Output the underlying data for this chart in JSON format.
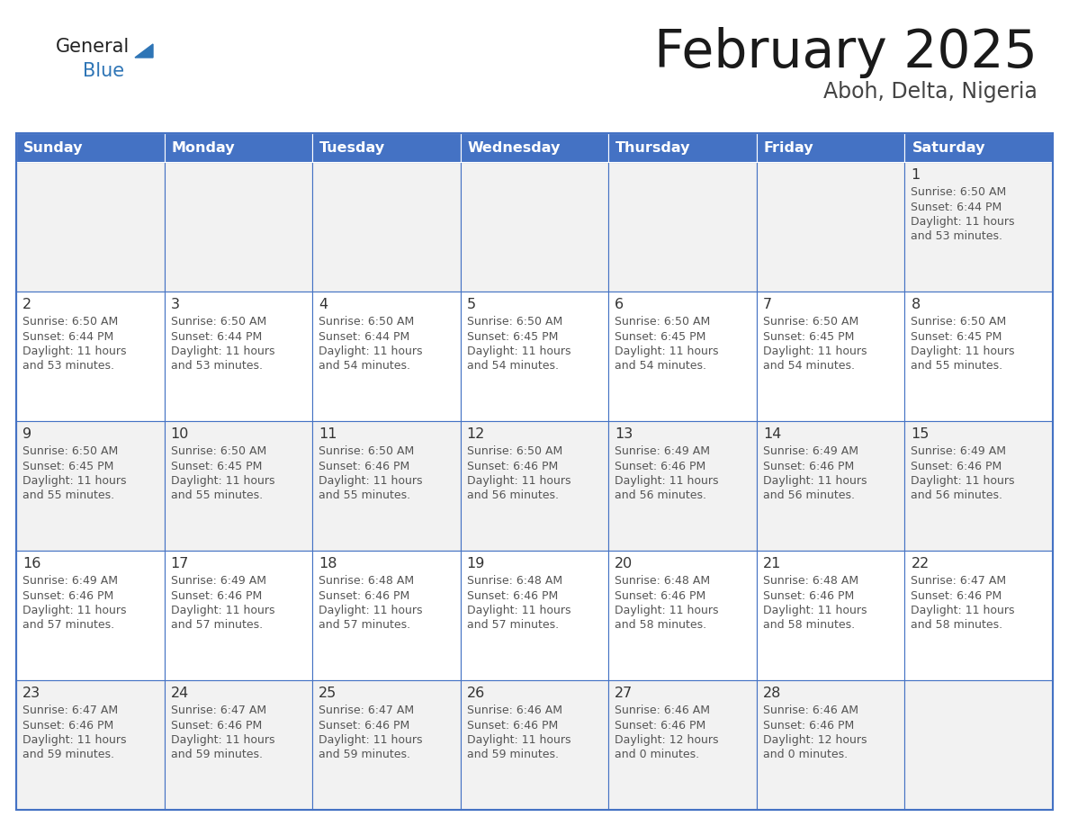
{
  "title": "February 2025",
  "subtitle": "Aboh, Delta, Nigeria",
  "days_of_week": [
    "Sunday",
    "Monday",
    "Tuesday",
    "Wednesday",
    "Thursday",
    "Friday",
    "Saturday"
  ],
  "header_bg": "#4472C4",
  "header_text": "#FFFFFF",
  "cell_border": "#4472C4",
  "text_color": "#555555",
  "logo_general_color": "#222222",
  "logo_blue_color": "#2E75B6",
  "logo_triangle_color": "#2E75B6",
  "calendar": [
    [
      null,
      null,
      null,
      null,
      null,
      null,
      1
    ],
    [
      2,
      3,
      4,
      5,
      6,
      7,
      8
    ],
    [
      9,
      10,
      11,
      12,
      13,
      14,
      15
    ],
    [
      16,
      17,
      18,
      19,
      20,
      21,
      22
    ],
    [
      23,
      24,
      25,
      26,
      27,
      28,
      null
    ]
  ],
  "cell_data": {
    "1": {
      "sunrise": "6:50 AM",
      "sunset": "6:44 PM",
      "daylight": "11 hours and 53 minutes."
    },
    "2": {
      "sunrise": "6:50 AM",
      "sunset": "6:44 PM",
      "daylight": "11 hours and 53 minutes."
    },
    "3": {
      "sunrise": "6:50 AM",
      "sunset": "6:44 PM",
      "daylight": "11 hours and 53 minutes."
    },
    "4": {
      "sunrise": "6:50 AM",
      "sunset": "6:44 PM",
      "daylight": "11 hours and 54 minutes."
    },
    "5": {
      "sunrise": "6:50 AM",
      "sunset": "6:45 PM",
      "daylight": "11 hours and 54 minutes."
    },
    "6": {
      "sunrise": "6:50 AM",
      "sunset": "6:45 PM",
      "daylight": "11 hours and 54 minutes."
    },
    "7": {
      "sunrise": "6:50 AM",
      "sunset": "6:45 PM",
      "daylight": "11 hours and 54 minutes."
    },
    "8": {
      "sunrise": "6:50 AM",
      "sunset": "6:45 PM",
      "daylight": "11 hours and 55 minutes."
    },
    "9": {
      "sunrise": "6:50 AM",
      "sunset": "6:45 PM",
      "daylight": "11 hours and 55 minutes."
    },
    "10": {
      "sunrise": "6:50 AM",
      "sunset": "6:45 PM",
      "daylight": "11 hours and 55 minutes."
    },
    "11": {
      "sunrise": "6:50 AM",
      "sunset": "6:46 PM",
      "daylight": "11 hours and 55 minutes."
    },
    "12": {
      "sunrise": "6:50 AM",
      "sunset": "6:46 PM",
      "daylight": "11 hours and 56 minutes."
    },
    "13": {
      "sunrise": "6:49 AM",
      "sunset": "6:46 PM",
      "daylight": "11 hours and 56 minutes."
    },
    "14": {
      "sunrise": "6:49 AM",
      "sunset": "6:46 PM",
      "daylight": "11 hours and 56 minutes."
    },
    "15": {
      "sunrise": "6:49 AM",
      "sunset": "6:46 PM",
      "daylight": "11 hours and 56 minutes."
    },
    "16": {
      "sunrise": "6:49 AM",
      "sunset": "6:46 PM",
      "daylight": "11 hours and 57 minutes."
    },
    "17": {
      "sunrise": "6:49 AM",
      "sunset": "6:46 PM",
      "daylight": "11 hours and 57 minutes."
    },
    "18": {
      "sunrise": "6:48 AM",
      "sunset": "6:46 PM",
      "daylight": "11 hours and 57 minutes."
    },
    "19": {
      "sunrise": "6:48 AM",
      "sunset": "6:46 PM",
      "daylight": "11 hours and 57 minutes."
    },
    "20": {
      "sunrise": "6:48 AM",
      "sunset": "6:46 PM",
      "daylight": "11 hours and 58 minutes."
    },
    "21": {
      "sunrise": "6:48 AM",
      "sunset": "6:46 PM",
      "daylight": "11 hours and 58 minutes."
    },
    "22": {
      "sunrise": "6:47 AM",
      "sunset": "6:46 PM",
      "daylight": "11 hours and 58 minutes."
    },
    "23": {
      "sunrise": "6:47 AM",
      "sunset": "6:46 PM",
      "daylight": "11 hours and 59 minutes."
    },
    "24": {
      "sunrise": "6:47 AM",
      "sunset": "6:46 PM",
      "daylight": "11 hours and 59 minutes."
    },
    "25": {
      "sunrise": "6:47 AM",
      "sunset": "6:46 PM",
      "daylight": "11 hours and 59 minutes."
    },
    "26": {
      "sunrise": "6:46 AM",
      "sunset": "6:46 PM",
      "daylight": "11 hours and 59 minutes."
    },
    "27": {
      "sunrise": "6:46 AM",
      "sunset": "6:46 PM",
      "daylight": "12 hours and 0 minutes."
    },
    "28": {
      "sunrise": "6:46 AM",
      "sunset": "6:46 PM",
      "daylight": "12 hours and 0 minutes."
    }
  },
  "figsize": [
    11.88,
    9.18
  ],
  "dpi": 100
}
